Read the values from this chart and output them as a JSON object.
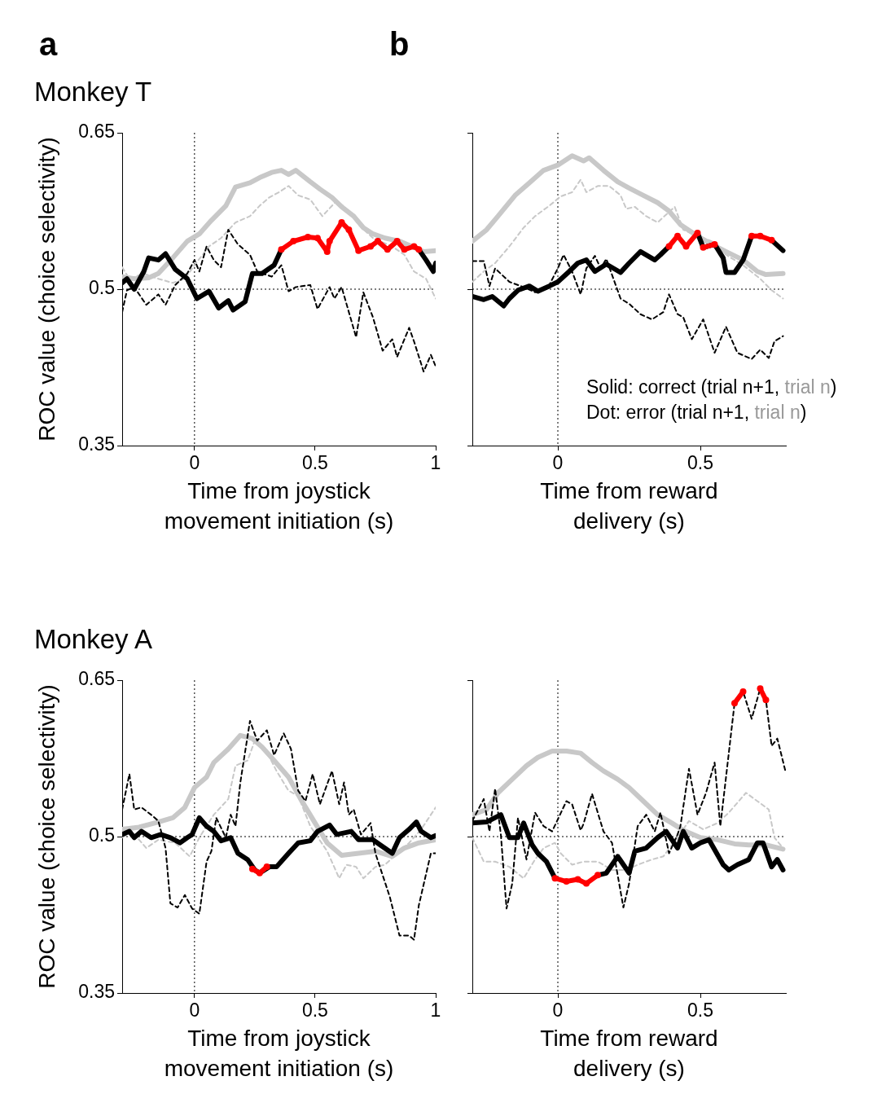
{
  "chart_data": [
    {
      "type": "line",
      "title": "Monkey T",
      "annotations": [
        "a"
      ],
      "ylabel": "ROC value (choice selectivity)",
      "xlabel": "Time from joystick movement initiation (s)",
      "xlim": [
        -0.3,
        1
      ],
      "xticks": [
        0,
        0.5,
        1
      ],
      "ylim": [
        0.35,
        0.65
      ],
      "yticks": [
        0.35,
        0.5,
        0.65
      ],
      "ref_lines": [
        {
          "axis": "x",
          "value": 0,
          "line_style": "dotted"
        },
        {
          "axis": "y",
          "value": 0.5,
          "line_style": "dotted"
        }
      ],
      "series": [
        {
          "color": "#c8c8c8",
          "line_style": "dashed",
          "x": [
            -0.3,
            -0.27,
            -0.21,
            -0.15,
            -0.09,
            -0.04,
            0.0,
            0.06,
            0.11,
            0.17,
            0.23,
            0.27,
            0.31,
            0.35,
            0.39,
            0.43,
            0.48,
            0.53,
            0.59,
            0.64,
            0.68,
            0.74,
            0.82,
            0.87,
            0.91,
            0.96,
            1.0
          ],
          "values": [
            0.521,
            0.51,
            0.515,
            0.51,
            0.506,
            0.51,
            0.523,
            0.541,
            0.549,
            0.564,
            0.57,
            0.58,
            0.588,
            0.593,
            0.599,
            0.59,
            0.586,
            0.57,
            0.585,
            0.575,
            0.562,
            0.549,
            0.541,
            0.533,
            0.517,
            0.51,
            0.491
          ]
        },
        {
          "color": "#c8c8c8",
          "line_style": "solid",
          "x": [
            -0.3,
            -0.25,
            -0.19,
            -0.15,
            -0.09,
            -0.03,
            0.02,
            0.07,
            0.13,
            0.17,
            0.23,
            0.27,
            0.32,
            0.36,
            0.39,
            0.42,
            0.48,
            0.52,
            0.57,
            0.61,
            0.66,
            0.7,
            0.74,
            0.79,
            0.85,
            0.91,
            0.95,
            1.0
          ],
          "values": [
            0.512,
            0.51,
            0.511,
            0.515,
            0.53,
            0.546,
            0.553,
            0.566,
            0.58,
            0.598,
            0.602,
            0.607,
            0.612,
            0.614,
            0.61,
            0.614,
            0.603,
            0.596,
            0.588,
            0.579,
            0.57,
            0.559,
            0.553,
            0.549,
            0.546,
            0.54,
            0.536,
            0.537
          ]
        },
        {
          "color": "#000000",
          "line_style": "dashed",
          "x": [
            -0.3,
            -0.28,
            -0.25,
            -0.2,
            -0.15,
            -0.12,
            -0.08,
            -0.03,
            0.0,
            0.02,
            0.05,
            0.08,
            0.11,
            0.14,
            0.18,
            0.23,
            0.26,
            0.32,
            0.36,
            0.39,
            0.42,
            0.48,
            0.51,
            0.56,
            0.58,
            0.61,
            0.67,
            0.7,
            0.74,
            0.78,
            0.82,
            0.84,
            0.89,
            0.91,
            0.95,
            0.98,
            1.0
          ],
          "values": [
            0.478,
            0.499,
            0.502,
            0.485,
            0.495,
            0.485,
            0.504,
            0.515,
            0.528,
            0.517,
            0.541,
            0.528,
            0.521,
            0.557,
            0.543,
            0.533,
            0.517,
            0.512,
            0.523,
            0.498,
            0.502,
            0.504,
            0.481,
            0.502,
            0.491,
            0.502,
            0.454,
            0.497,
            0.473,
            0.441,
            0.452,
            0.435,
            0.463,
            0.45,
            0.421,
            0.437,
            0.426
          ]
        },
        {
          "color": "#000000",
          "line_style": "solid",
          "x": [
            -0.3,
            -0.28,
            -0.25,
            -0.21,
            -0.19,
            -0.15,
            -0.12,
            -0.08,
            -0.03,
            0.01,
            0.06,
            0.1,
            0.14,
            0.16,
            0.21,
            0.24,
            0.28,
            0.33,
            0.36,
            0.41,
            0.47,
            0.51,
            0.55,
            0.56,
            0.61,
            0.64,
            0.68,
            0.73,
            0.76,
            0.8,
            0.84,
            0.87,
            0.91,
            0.93,
            0.96,
            0.99,
            1.0
          ],
          "values": [
            0.506,
            0.51,
            0.5,
            0.517,
            0.53,
            0.528,
            0.534,
            0.519,
            0.51,
            0.491,
            0.498,
            0.482,
            0.489,
            0.48,
            0.488,
            0.515,
            0.515,
            0.523,
            0.538,
            null,
            null,
            null,
            null,
            null,
            null,
            null,
            null,
            null,
            null,
            null,
            null,
            null,
            null,
            0.538,
            0.528,
            0.517,
            0.525
          ]
        },
        {
          "color": "#ff0000",
          "line_style": "solid",
          "marker": "circle",
          "x": [
            0.36,
            0.41,
            0.47,
            0.51,
            0.55,
            0.56,
            0.61,
            0.64,
            0.68,
            0.73,
            0.76,
            0.8,
            0.84,
            0.87,
            0.91,
            0.93
          ],
          "values": [
            0.538,
            0.546,
            0.55,
            0.549,
            0.536,
            0.546,
            0.564,
            0.557,
            0.537,
            0.541,
            0.546,
            0.538,
            0.546,
            0.538,
            0.541,
            0.538
          ]
        }
      ]
    },
    {
      "type": "line",
      "annotations": [
        "b",
        "Solid: correct (trial n+1, trial n)",
        "Dot: error (trial n+1, trial n)"
      ],
      "xlabel": "Time from reward delivery (s)",
      "xlim": [
        -0.3,
        0.8
      ],
      "xticks": [
        0,
        0.5
      ],
      "ylim": [
        0.35,
        0.65
      ],
      "yticks": [
        0.35,
        0.5,
        0.65
      ],
      "tick_labels": "x",
      "ref_lines": [
        {
          "axis": "x",
          "value": 0,
          "line_style": "dotted"
        },
        {
          "axis": "y",
          "value": 0.5,
          "line_style": "dotted"
        }
      ],
      "series": [
        {
          "color": "#c8c8c8",
          "line_style": "dashed",
          "x": [
            -0.3,
            -0.26,
            -0.22,
            -0.17,
            -0.12,
            -0.08,
            -0.03,
            0.01,
            0.05,
            0.08,
            0.1,
            0.14,
            0.18,
            0.22,
            0.24,
            0.27,
            0.31,
            0.35,
            0.41,
            0.44,
            0.49,
            0.54,
            0.59,
            0.65,
            0.71,
            0.75,
            0.79
          ],
          "values": [
            0.507,
            0.517,
            0.525,
            0.541,
            0.559,
            0.57,
            0.58,
            0.589,
            0.593,
            0.605,
            0.593,
            0.599,
            0.599,
            0.59,
            0.577,
            0.579,
            0.57,
            0.564,
            0.579,
            0.557,
            0.551,
            0.546,
            0.533,
            0.523,
            0.51,
            0.499,
            0.491
          ]
        },
        {
          "color": "#c8c8c8",
          "line_style": "solid",
          "x": [
            -0.3,
            -0.25,
            -0.21,
            -0.15,
            -0.1,
            -0.05,
            0.0,
            0.05,
            0.09,
            0.11,
            0.16,
            0.21,
            0.25,
            0.3,
            0.35,
            0.39,
            0.43,
            0.49,
            0.54,
            0.59,
            0.65,
            0.7,
            0.73,
            0.79
          ],
          "values": [
            0.546,
            0.557,
            0.57,
            0.59,
            0.602,
            0.614,
            0.619,
            0.628,
            0.623,
            0.626,
            0.614,
            0.603,
            0.597,
            0.59,
            0.583,
            0.575,
            0.562,
            0.551,
            0.543,
            0.536,
            0.528,
            0.517,
            0.514,
            0.515
          ]
        },
        {
          "color": "#000000",
          "line_style": "dashed",
          "x": [
            -0.3,
            -0.26,
            -0.24,
            -0.22,
            -0.17,
            -0.12,
            -0.08,
            -0.03,
            0.0,
            0.02,
            0.05,
            0.08,
            0.1,
            0.13,
            0.15,
            0.17,
            0.22,
            0.25,
            0.29,
            0.33,
            0.37,
            0.39,
            0.42,
            0.44,
            0.47,
            0.51,
            0.55,
            0.59,
            0.63,
            0.68,
            0.71,
            0.74,
            0.76,
            0.79
          ],
          "values": [
            0.527,
            0.527,
            0.503,
            0.52,
            0.507,
            0.502,
            0.497,
            0.504,
            0.52,
            0.533,
            0.517,
            0.495,
            0.52,
            0.532,
            0.52,
            0.529,
            0.491,
            0.486,
            0.476,
            0.471,
            0.478,
            0.495,
            0.476,
            0.473,
            0.452,
            0.471,
            0.439,
            0.464,
            0.439,
            0.433,
            0.442,
            0.434,
            0.45,
            0.455
          ]
        },
        {
          "color": "#000000",
          "line_style": "solid",
          "x": [
            -0.3,
            -0.26,
            -0.23,
            -0.19,
            -0.17,
            -0.14,
            -0.1,
            -0.07,
            -0.03,
            0.0,
            0.04,
            0.07,
            0.1,
            0.13,
            0.17,
            0.22,
            0.25,
            0.29,
            0.34,
            0.36,
            0.39,
            0.42,
            0.45,
            0.49,
            0.51,
            0.55,
            0.58,
            0.59,
            0.62,
            0.65,
            0.68,
            0.71,
            0.75,
            0.79
          ],
          "values": [
            0.493,
            0.49,
            0.493,
            0.484,
            0.491,
            0.499,
            0.503,
            0.498,
            0.503,
            0.507,
            0.517,
            0.525,
            0.528,
            0.517,
            0.524,
            0.516,
            0.525,
            0.536,
            0.528,
            0.533,
            0.541,
            null,
            null,
            0.554,
            0.54,
            0.543,
            0.53,
            0.516,
            0.516,
            0.528,
            0.551,
            null,
            0.547,
            0.537
          ]
        },
        {
          "color": "#ff0000",
          "line_style": "solid",
          "marker": "circle",
          "x": [
            0.39,
            0.42,
            0.45,
            0.49,
            0.5,
            0.51,
            0.55,
            0.6,
            0.68,
            0.71,
            0.75
          ],
          "values": [
            0.541,
            0.551,
            0.541,
            0.554,
            null,
            0.54,
            0.543,
            null,
            0.551,
            0.551,
            0.547
          ]
        }
      ]
    },
    {
      "type": "line",
      "title": "Monkey A",
      "ylabel": "ROC value (choice selectivity)",
      "xlabel": "Time from joystick movement initiation (s)",
      "xlim": [
        -0.3,
        1
      ],
      "xticks": [
        0,
        0.5,
        1
      ],
      "ylim": [
        0.35,
        0.65
      ],
      "yticks": [
        0.35,
        0.5,
        0.65
      ],
      "ref_lines": [
        {
          "axis": "x",
          "value": 0,
          "line_style": "dotted"
        },
        {
          "axis": "y",
          "value": 0.5,
          "line_style": "dotted"
        }
      ],
      "series": [
        {
          "color": "#c8c8c8",
          "line_style": "dashed",
          "x": [
            -0.3,
            -0.26,
            -0.2,
            -0.15,
            -0.08,
            -0.02,
            0.02,
            0.08,
            0.14,
            0.17,
            0.22,
            0.25,
            0.3,
            0.34,
            0.39,
            0.43,
            0.48,
            0.55,
            0.6,
            0.63,
            0.67,
            0.7,
            0.75,
            0.79,
            0.84,
            0.89,
            0.94,
            1.0
          ],
          "values": [
            0.499,
            0.505,
            0.489,
            0.497,
            0.494,
            0.481,
            0.499,
            0.521,
            0.536,
            0.568,
            0.573,
            0.592,
            0.581,
            0.563,
            0.544,
            0.539,
            0.51,
            0.486,
            0.46,
            0.473,
            0.471,
            0.46,
            0.471,
            0.473,
            0.484,
            0.494,
            0.507,
            0.528
          ]
        },
        {
          "color": "#c8c8c8",
          "line_style": "solid",
          "x": [
            -0.3,
            -0.23,
            -0.15,
            -0.09,
            -0.04,
            0.0,
            0.05,
            0.08,
            0.14,
            0.19,
            0.24,
            0.28,
            0.33,
            0.39,
            0.44,
            0.5,
            0.55,
            0.61,
            0.68,
            0.75,
            0.82,
            0.87,
            0.93,
            1.0
          ],
          "values": [
            0.507,
            0.509,
            0.514,
            0.518,
            0.528,
            0.547,
            0.557,
            0.571,
            0.584,
            0.597,
            0.594,
            0.586,
            0.573,
            0.557,
            0.536,
            0.513,
            0.494,
            0.482,
            0.484,
            0.486,
            0.481,
            0.489,
            0.494,
            0.497
          ]
        },
        {
          "color": "#000000",
          "line_style": "dashed",
          "x": [
            -0.3,
            -0.27,
            -0.25,
            -0.22,
            -0.18,
            -0.15,
            -0.12,
            -0.1,
            -0.07,
            -0.04,
            -0.01,
            0.02,
            0.05,
            0.07,
            0.09,
            0.13,
            0.15,
            0.17,
            0.19,
            0.23,
            0.26,
            0.3,
            0.33,
            0.37,
            0.4,
            0.43,
            0.46,
            0.49,
            0.52,
            0.57,
            0.6,
            0.62,
            0.64,
            0.66,
            0.69,
            0.73,
            0.75,
            0.81,
            0.85,
            0.89,
            0.91,
            0.93,
            0.98,
            1.0
          ],
          "values": [
            0.526,
            0.56,
            0.526,
            0.528,
            0.521,
            0.515,
            0.489,
            0.436,
            0.432,
            0.444,
            0.431,
            0.426,
            0.476,
            0.486,
            0.518,
            0.499,
            0.521,
            0.51,
            0.552,
            0.611,
            0.592,
            0.602,
            0.578,
            0.599,
            0.584,
            0.544,
            0.534,
            0.56,
            0.531,
            0.563,
            0.531,
            0.552,
            0.521,
            0.526,
            0.502,
            0.513,
            0.484,
            0.442,
            0.405,
            0.405,
            0.401,
            0.434,
            0.484,
            0.484
          ]
        },
        {
          "color": "#000000",
          "line_style": "solid",
          "x": [
            -0.3,
            -0.27,
            -0.25,
            -0.22,
            -0.18,
            -0.14,
            -0.1,
            -0.06,
            -0.03,
            -0.01,
            0.02,
            0.05,
            0.08,
            0.11,
            0.15,
            0.18,
            0.22,
            0.25,
            0.27,
            0.31,
            0.34,
            0.39,
            0.43,
            0.48,
            0.51,
            0.56,
            0.59,
            0.65,
            0.68,
            0.74,
            0.77,
            0.82,
            0.85,
            0.89,
            0.92,
            0.94,
            0.98,
            1.0
          ],
          "values": [
            0.502,
            0.505,
            0.499,
            0.505,
            0.499,
            0.502,
            0.499,
            0.494,
            0.499,
            0.502,
            0.518,
            0.51,
            0.505,
            0.496,
            0.499,
            0.484,
            0.478,
            0.468,
            0.465,
            0.471,
            0.471,
            0.484,
            0.494,
            0.496,
            0.505,
            0.511,
            0.502,
            0.505,
            0.497,
            0.497,
            0.492,
            0.484,
            0.499,
            0.507,
            0.514,
            0.505,
            0.499,
            0.501
          ]
        },
        {
          "color": "#ff0000",
          "line_style": "solid",
          "marker": "circle",
          "x": [
            0.24,
            0.27,
            0.3
          ],
          "values": [
            0.469,
            0.465,
            0.471
          ]
        }
      ]
    },
    {
      "type": "line",
      "xlabel": "Time from reward delivery (s)",
      "xlim": [
        -0.3,
        0.8
      ],
      "xticks": [
        0,
        0.5
      ],
      "ylim": [
        0.35,
        0.65
      ],
      "yticks": [
        0.35,
        0.5,
        0.65
      ],
      "tick_labels": "x",
      "ref_lines": [
        {
          "axis": "x",
          "value": 0,
          "line_style": "dotted"
        },
        {
          "axis": "y",
          "value": 0.5,
          "line_style": "dotted"
        }
      ],
      "series": [
        {
          "color": "#c8c8c8",
          "line_style": "dashed",
          "x": [
            -0.3,
            -0.26,
            -0.22,
            -0.17,
            -0.12,
            -0.08,
            -0.05,
            -0.01,
            0.01,
            0.05,
            0.09,
            0.14,
            0.19,
            0.24,
            0.28,
            0.33,
            0.37,
            0.42,
            0.46,
            0.51,
            0.56,
            0.6,
            0.66,
            0.7,
            0.74,
            0.76,
            0.79
          ],
          "values": [
            0.499,
            0.476,
            0.476,
            0.471,
            0.46,
            0.478,
            0.489,
            0.494,
            0.484,
            0.473,
            0.476,
            0.476,
            0.468,
            0.468,
            0.473,
            0.478,
            0.481,
            0.499,
            0.515,
            0.507,
            0.513,
            0.523,
            0.542,
            0.534,
            0.526,
            0.499,
            0.489
          ]
        },
        {
          "color": "#c8c8c8",
          "line_style": "solid",
          "x": [
            -0.3,
            -0.25,
            -0.21,
            -0.16,
            -0.11,
            -0.07,
            -0.02,
            0.03,
            0.08,
            0.12,
            0.16,
            0.21,
            0.25,
            0.3,
            0.35,
            0.4,
            0.44,
            0.5,
            0.56,
            0.62,
            0.67,
            0.73,
            0.79
          ],
          "values": [
            0.521,
            0.526,
            0.542,
            0.555,
            0.568,
            0.576,
            0.582,
            0.582,
            0.58,
            0.571,
            0.563,
            0.555,
            0.547,
            0.534,
            0.521,
            0.513,
            0.506,
            0.499,
            0.497,
            0.493,
            0.492,
            0.492,
            0.488
          ]
        },
        {
          "color": "#000000",
          "line_style": "dashed",
          "x": [
            -0.3,
            -0.26,
            -0.24,
            -0.22,
            -0.2,
            -0.18,
            -0.16,
            -0.14,
            -0.11,
            -0.08,
            -0.05,
            -0.02,
            0.03,
            0.05,
            0.08,
            0.09,
            0.12,
            0.16,
            0.19,
            0.23,
            0.25,
            0.28,
            0.31,
            0.34,
            0.36,
            0.39,
            0.42,
            0.43,
            0.46,
            0.49,
            0.52,
            0.55,
            0.57,
            0.59,
            0.62,
            0.65,
            0.68,
            0.71,
            0.73,
            0.75,
            0.77,
            0.8
          ],
          "values": [
            0.515,
            0.536,
            0.505,
            0.546,
            0.502,
            0.431,
            0.455,
            0.518,
            0.478,
            0.523,
            0.51,
            0.505,
            0.534,
            0.531,
            0.506,
            0.512,
            0.541,
            0.505,
            0.494,
            0.432,
            0.455,
            0.51,
            0.521,
            0.505,
            0.523,
            0.484,
            0.502,
            0.51,
            0.565,
            0.521,
            0.542,
            0.571,
            0.51,
            0.557,
            0.628,
            0.639,
            0.613,
            0.642,
            0.631,
            0.587,
            0.594,
            0.561
          ]
        },
        {
          "color": "#000000",
          "line_style": "solid",
          "x": [
            -0.3,
            -0.25,
            -0.2,
            -0.17,
            -0.14,
            -0.12,
            -0.09,
            -0.07,
            -0.04,
            -0.01,
            0.03,
            0.07,
            0.1,
            0.14,
            0.17,
            0.21,
            0.25,
            0.27,
            0.31,
            0.35,
            0.38,
            0.42,
            0.44,
            0.47,
            0.5,
            0.53,
            0.58,
            0.6,
            0.63,
            0.67,
            0.7,
            0.72,
            0.75,
            0.77,
            0.79
          ],
          "values": [
            0.513,
            0.514,
            0.521,
            0.499,
            0.499,
            0.513,
            0.492,
            0.484,
            0.476,
            0.46,
            null,
            null,
            null,
            0.463,
            0.465,
            0.481,
            0.465,
            0.486,
            0.489,
            0.499,
            0.505,
            0.489,
            0.505,
            0.489,
            0.494,
            0.497,
            0.473,
            0.468,
            0.473,
            0.478,
            0.494,
            0.494,
            0.471,
            0.478,
            0.468
          ]
        },
        {
          "color": "#ff0000",
          "line_style": "solid",
          "marker": "circle",
          "x": [
            -0.01,
            0.03,
            0.07,
            0.1,
            0.14
          ],
          "values": [
            0.46,
            0.457,
            0.459,
            0.455,
            0.463
          ]
        },
        {
          "color": "#ff0000",
          "line_style": "solid",
          "marker": "circle",
          "x": [
            0.62,
            0.65,
            0.68,
            0.71,
            0.73
          ],
          "values": [
            0.628,
            0.639,
            null,
            0.642,
            0.631
          ]
        }
      ]
    }
  ]
}
